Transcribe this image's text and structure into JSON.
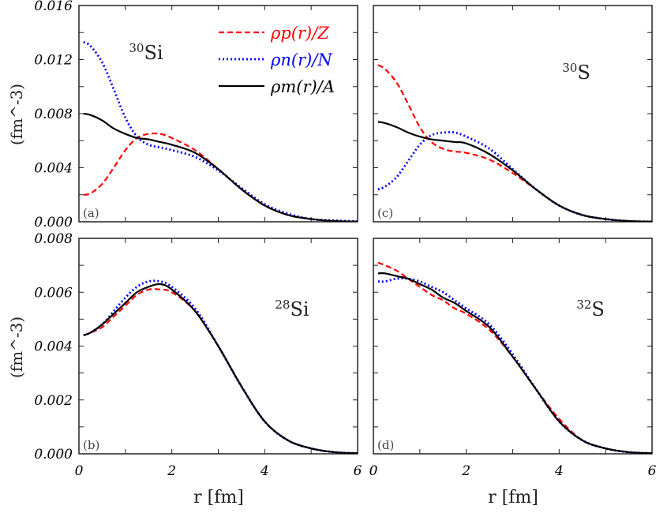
{
  "chart_data": {
    "type": "line",
    "xlabel": "r [fm]",
    "ylabel": "(fm^-3)",
    "colors": {
      "proton": "#ff0000",
      "neutron": "#0000ff",
      "matter": "#000000"
    },
    "legend": {
      "placement": "top-right of panel (a)",
      "entries": [
        {
          "key": "p",
          "label": "ρp(r)/Z",
          "style": "dashed",
          "color": "#ff0000"
        },
        {
          "key": "n",
          "label": "ρn(r)/N",
          "style": "dotted",
          "color": "#0000ff"
        },
        {
          "key": "m",
          "label": "ρm(r)/A",
          "style": "solid",
          "color": "#000000"
        }
      ]
    },
    "r": [
      0.1,
      0.25,
      0.5,
      0.75,
      1,
      1.25,
      1.5,
      1.75,
      2,
      2.5,
      3,
      3.5,
      4,
      4.5,
      5,
      5.5,
      6
    ],
    "panels": [
      {
        "id": "a",
        "panel_label": "(a)",
        "nucleus_mass": "30",
        "nucleus_symbol": "Si",
        "xlim": [
          0,
          6
        ],
        "ylim": [
          0,
          0.016
        ],
        "yticks": [
          "0.000",
          "0.004",
          "0.008",
          "0.012",
          "0.016"
        ],
        "xticks": [
          "0",
          "2",
          "4",
          "6"
        ],
        "series": {
          "p": [
            0.002,
            0.0021,
            0.0028,
            0.004,
            0.0053,
            0.0062,
            0.0065,
            0.0065,
            0.0062,
            0.0053,
            0.0039,
            0.0024,
            0.0012,
            0.0005,
            0.0002,
            5e-05,
            1e-05
          ],
          "n": [
            0.0133,
            0.013,
            0.0118,
            0.0098,
            0.0077,
            0.0063,
            0.0057,
            0.0055,
            0.0053,
            0.0048,
            0.0038,
            0.0025,
            0.0013,
            0.0006,
            0.0002,
            0.0001,
            3e-05
          ],
          "m": [
            0.008,
            0.0079,
            0.0075,
            0.0069,
            0.0065,
            0.0062,
            0.0061,
            0.0059,
            0.0057,
            0.0051,
            0.0039,
            0.0024,
            0.0012,
            0.0005,
            0.0002,
            5e-05,
            1e-05
          ]
        }
      },
      {
        "id": "c",
        "panel_label": "(c)",
        "nucleus_mass": "30",
        "nucleus_symbol": "S",
        "xlim": [
          0,
          6
        ],
        "ylim": [
          0,
          0.016
        ],
        "yticks": [],
        "xticks": [
          "0",
          "2",
          "4",
          "6"
        ],
        "series": {
          "p": [
            0.0116,
            0.0113,
            0.0103,
            0.0087,
            0.007,
            0.0059,
            0.0054,
            0.0052,
            0.0051,
            0.0046,
            0.0036,
            0.0024,
            0.0012,
            0.0005,
            0.0002,
            5e-05,
            1e-05
          ],
          "n": [
            0.0024,
            0.0026,
            0.0033,
            0.0045,
            0.0057,
            0.0064,
            0.0066,
            0.0066,
            0.0063,
            0.0054,
            0.0039,
            0.0024,
            0.0012,
            0.0005,
            0.0002,
            5e-05,
            1e-05
          ],
          "m": [
            0.0074,
            0.0073,
            0.007,
            0.0066,
            0.0063,
            0.0061,
            0.006,
            0.0059,
            0.0058,
            0.005,
            0.0038,
            0.0024,
            0.0012,
            0.0005,
            0.0002,
            5e-05,
            1e-05
          ]
        }
      },
      {
        "id": "b",
        "panel_label": "(b)",
        "nucleus_mass": "28",
        "nucleus_symbol": "Si",
        "xlim": [
          0,
          6
        ],
        "ylim": [
          0,
          0.008
        ],
        "yticks": [
          "0.000",
          "0.002",
          "0.004",
          "0.006",
          "0.008"
        ],
        "xticks": [
          "0",
          "2",
          "4",
          "6"
        ],
        "series": {
          "p": [
            0.0044,
            0.0045,
            0.0047,
            0.0051,
            0.0055,
            0.0059,
            0.0061,
            0.0061,
            0.006,
            0.0053,
            0.004,
            0.0025,
            0.0012,
            0.0005,
            0.0002,
            6e-05,
            2e-05
          ],
          "n": [
            0.0044,
            0.0045,
            0.0048,
            0.0053,
            0.0058,
            0.0062,
            0.0064,
            0.0064,
            0.0062,
            0.0054,
            0.004,
            0.0025,
            0.0012,
            0.0005,
            0.0002,
            6e-05,
            2e-05
          ],
          "m": [
            0.0044,
            0.0045,
            0.0048,
            0.0052,
            0.0056,
            0.006,
            0.0062,
            0.0063,
            0.0061,
            0.0053,
            0.004,
            0.0025,
            0.0012,
            0.0005,
            0.0002,
            6e-05,
            2e-05
          ]
        }
      },
      {
        "id": "d",
        "panel_label": "(d)",
        "nucleus_mass": "32",
        "nucleus_symbol": "S",
        "xlim": [
          0,
          6
        ],
        "ylim": [
          0,
          0.008
        ],
        "yticks": [],
        "xticks": [
          "0",
          "2",
          "4",
          "6"
        ],
        "series": {
          "p": [
            0.0071,
            0.007,
            0.0068,
            0.0065,
            0.0062,
            0.0059,
            0.0057,
            0.0054,
            0.0052,
            0.0046,
            0.0036,
            0.0024,
            0.0013,
            0.0005,
            0.0002,
            6e-05,
            2e-05
          ],
          "n": [
            0.0064,
            0.0064,
            0.0065,
            0.0065,
            0.0064,
            0.0062,
            0.006,
            0.0057,
            0.0054,
            0.0048,
            0.0037,
            0.0024,
            0.0012,
            0.0005,
            0.0002,
            6e-05,
            2e-05
          ],
          "m": [
            0.0067,
            0.0067,
            0.0066,
            0.0065,
            0.0063,
            0.0061,
            0.0058,
            0.0056,
            0.0053,
            0.0047,
            0.0036,
            0.0024,
            0.0012,
            0.0005,
            0.0002,
            6e-05,
            2e-05
          ]
        }
      }
    ]
  }
}
